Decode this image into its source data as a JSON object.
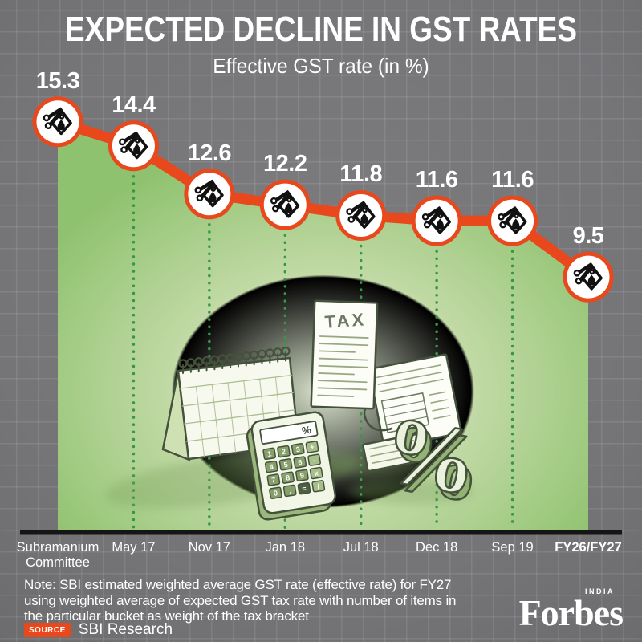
{
  "header": {
    "title": "EXPECTED DECLINE IN GST RATES",
    "subtitle": "Effective GST rate (in %)"
  },
  "chart_data": {
    "type": "line",
    "title": "EXPECTED DECLINE IN GST RATES",
    "subtitle": "Effective GST rate (in %)",
    "categories": [
      "Subramanium\nCommittee",
      "May 17",
      "Nov 17",
      "Jan 18",
      "Jul 18",
      "Dec 18",
      "Sep 19",
      "FY26/FY27"
    ],
    "values": [
      15.3,
      14.4,
      12.6,
      12.2,
      11.8,
      11.6,
      11.6,
      9.5
    ],
    "value_labels": [
      "15.3",
      "14.4",
      "12.6",
      "12.2",
      "11.8",
      "11.6",
      "11.6",
      "9.5"
    ],
    "xlabel": "",
    "ylabel": "Effective GST rate (in %)",
    "ylim": [
      0,
      17
    ],
    "legend": "none",
    "grid": "vertical dotted droplines under each marker to baseline",
    "area_fill": "light-green radial gradient under the line",
    "marker": "white circle with scissors-cutting-price-tag icon",
    "last_category_emphasis": true
  },
  "illustration": {
    "receipt_label": "TAX",
    "calc_display_symbol": "%",
    "percent_symbol": "%",
    "calc_keys": [
      "1",
      "2",
      "3",
      "+",
      "4",
      "5",
      "6",
      "-",
      "7",
      "8",
      "9",
      "x",
      "0",
      ".",
      "=",
      "/"
    ]
  },
  "footer": {
    "note_lines": [
      "Note: SBI estimated weighted average GST rate (effective rate) for FY27",
      "using weighted average of expected GST tax rate with number of items in",
      "the particular bucket as weight of the tax bracket"
    ],
    "source_label": "SOURCE",
    "source_value": "SBI Research",
    "brand_name": "Forbes",
    "brand_region": "INDIA"
  },
  "colors": {
    "background_gray": "#757578",
    "accent_orange": "#e8481c",
    "area_green_center": "#dde7d0",
    "area_green_edge": "#8fc26f",
    "dropline_green": "#35974a",
    "axis_black": "#151515",
    "text_white": "#ffffff",
    "illustration_stroke": "#44523c"
  }
}
